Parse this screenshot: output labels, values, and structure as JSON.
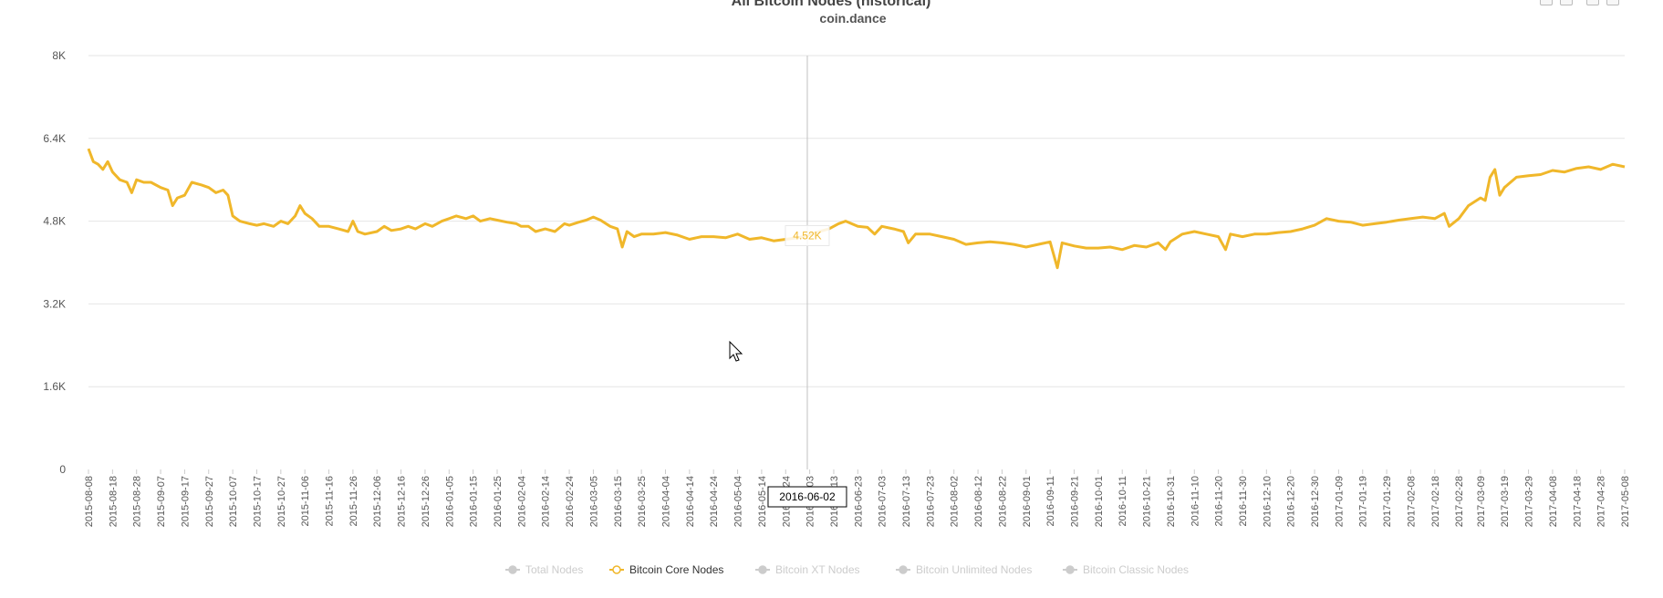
{
  "chart_data": {
    "type": "line",
    "title": "All Bitcoin Nodes (historical)",
    "subtitle": "coin.dance",
    "xlabel": "",
    "ylabel": "",
    "ylim": [
      0,
      8000
    ],
    "y_ticks": [
      "0",
      "1.6K",
      "3.2K",
      "4.8K",
      "6.4K",
      "8K"
    ],
    "grid": true,
    "legend_position": "bottom-center",
    "x_ticks": [
      "2015-08-08",
      "2015-08-18",
      "2015-08-28",
      "2015-09-07",
      "2015-09-17",
      "2015-09-27",
      "2015-10-07",
      "2015-10-17",
      "2015-10-27",
      "2015-11-06",
      "2015-11-16",
      "2015-11-26",
      "2015-12-06",
      "2015-12-16",
      "2015-12-26",
      "2016-01-05",
      "2016-01-15",
      "2016-01-25",
      "2016-02-04",
      "2016-02-14",
      "2016-02-24",
      "2016-03-05",
      "2016-03-15",
      "2016-03-25",
      "2016-04-04",
      "2016-04-14",
      "2016-04-24",
      "2016-05-04",
      "2016-05-14",
      "2016-05-24",
      "2016-06-03",
      "2016-06-13",
      "2016-06-23",
      "2016-07-03",
      "2016-07-13",
      "2016-07-23",
      "2016-08-02",
      "2016-08-12",
      "2016-08-22",
      "2016-09-01",
      "2016-09-11",
      "2016-09-21",
      "2016-10-01",
      "2016-10-11",
      "2016-10-21",
      "2016-10-31",
      "2016-11-10",
      "2016-11-20",
      "2016-11-30",
      "2016-12-10",
      "2016-12-20",
      "2016-12-30",
      "2017-01-09",
      "2017-01-19",
      "2017-01-29",
      "2017-02-08",
      "2017-02-18",
      "2017-02-28",
      "2017-03-09",
      "2017-03-19",
      "2017-03-29",
      "2017-04-08",
      "2017-04-18",
      "2017-04-28",
      "2017-05-08"
    ],
    "series": [
      {
        "name": "Total Nodes",
        "color": "#cccccc",
        "visible": false,
        "values": []
      },
      {
        "name": "Bitcoin Core Nodes",
        "color": "#f0b72a",
        "visible": true,
        "points": [
          [
            "2015-08-08",
            6200
          ],
          [
            "2015-08-10",
            5950
          ],
          [
            "2015-08-12",
            5900
          ],
          [
            "2015-08-14",
            5800
          ],
          [
            "2015-08-16",
            5950
          ],
          [
            "2015-08-18",
            5750
          ],
          [
            "2015-08-21",
            5600
          ],
          [
            "2015-08-24",
            5550
          ],
          [
            "2015-08-26",
            5350
          ],
          [
            "2015-08-28",
            5600
          ],
          [
            "2015-08-31",
            5550
          ],
          [
            "2015-09-03",
            5550
          ],
          [
            "2015-09-07",
            5450
          ],
          [
            "2015-09-10",
            5400
          ],
          [
            "2015-09-12",
            5100
          ],
          [
            "2015-09-14",
            5250
          ],
          [
            "2015-09-17",
            5300
          ],
          [
            "2015-09-20",
            5550
          ],
          [
            "2015-09-24",
            5500
          ],
          [
            "2015-09-27",
            5450
          ],
          [
            "2015-09-30",
            5350
          ],
          [
            "2015-10-03",
            5400
          ],
          [
            "2015-10-05",
            5300
          ],
          [
            "2015-10-07",
            4900
          ],
          [
            "2015-10-10",
            4800
          ],
          [
            "2015-10-14",
            4750
          ],
          [
            "2015-10-17",
            4720
          ],
          [
            "2015-10-20",
            4750
          ],
          [
            "2015-10-24",
            4700
          ],
          [
            "2015-10-27",
            4800
          ],
          [
            "2015-10-30",
            4750
          ],
          [
            "2015-11-02",
            4900
          ],
          [
            "2015-11-04",
            5100
          ],
          [
            "2015-11-06",
            4950
          ],
          [
            "2015-11-09",
            4850
          ],
          [
            "2015-11-12",
            4700
          ],
          [
            "2015-11-16",
            4700
          ],
          [
            "2015-11-20",
            4650
          ],
          [
            "2015-11-24",
            4600
          ],
          [
            "2015-11-26",
            4800
          ],
          [
            "2015-11-28",
            4600
          ],
          [
            "2015-12-01",
            4550
          ],
          [
            "2015-12-06",
            4600
          ],
          [
            "2015-12-09",
            4700
          ],
          [
            "2015-12-12",
            4620
          ],
          [
            "2015-12-16",
            4650
          ],
          [
            "2015-12-19",
            4700
          ],
          [
            "2015-12-22",
            4650
          ],
          [
            "2015-12-26",
            4750
          ],
          [
            "2015-12-29",
            4700
          ],
          [
            "2016-01-02",
            4800
          ],
          [
            "2016-01-05",
            4850
          ],
          [
            "2016-01-08",
            4900
          ],
          [
            "2016-01-12",
            4850
          ],
          [
            "2016-01-15",
            4900
          ],
          [
            "2016-01-18",
            4800
          ],
          [
            "2016-01-22",
            4850
          ],
          [
            "2016-01-25",
            4820
          ],
          [
            "2016-01-29",
            4780
          ],
          [
            "2016-02-02",
            4750
          ],
          [
            "2016-02-04",
            4700
          ],
          [
            "2016-02-07",
            4700
          ],
          [
            "2016-02-10",
            4600
          ],
          [
            "2016-02-14",
            4650
          ],
          [
            "2016-02-18",
            4600
          ],
          [
            "2016-02-22",
            4750
          ],
          [
            "2016-02-24",
            4720
          ],
          [
            "2016-02-28",
            4780
          ],
          [
            "2016-03-02",
            4820
          ],
          [
            "2016-03-05",
            4880
          ],
          [
            "2016-03-08",
            4820
          ],
          [
            "2016-03-12",
            4700
          ],
          [
            "2016-03-15",
            4650
          ],
          [
            "2016-03-17",
            4300
          ],
          [
            "2016-03-19",
            4600
          ],
          [
            "2016-03-22",
            4500
          ],
          [
            "2016-03-25",
            4550
          ],
          [
            "2016-03-30",
            4550
          ],
          [
            "2016-04-04",
            4580
          ],
          [
            "2016-04-09",
            4530
          ],
          [
            "2016-04-14",
            4450
          ],
          [
            "2016-04-19",
            4500
          ],
          [
            "2016-04-24",
            4500
          ],
          [
            "2016-04-29",
            4480
          ],
          [
            "2016-05-04",
            4550
          ],
          [
            "2016-05-09",
            4450
          ],
          [
            "2016-05-14",
            4480
          ],
          [
            "2016-05-19",
            4420
          ],
          [
            "2016-05-24",
            4450
          ],
          [
            "2016-05-29",
            4480
          ],
          [
            "2016-06-02",
            4520
          ],
          [
            "2016-06-07",
            4600
          ],
          [
            "2016-06-11",
            4650
          ],
          [
            "2016-06-15",
            4750
          ],
          [
            "2016-06-18",
            4800
          ],
          [
            "2016-06-23",
            4700
          ],
          [
            "2016-06-27",
            4680
          ],
          [
            "2016-06-30",
            4550
          ],
          [
            "2016-07-03",
            4700
          ],
          [
            "2016-07-08",
            4650
          ],
          [
            "2016-07-12",
            4600
          ],
          [
            "2016-07-14",
            4380
          ],
          [
            "2016-07-17",
            4550
          ],
          [
            "2016-07-23",
            4550
          ],
          [
            "2016-07-28",
            4500
          ],
          [
            "2016-08-02",
            4450
          ],
          [
            "2016-08-07",
            4350
          ],
          [
            "2016-08-12",
            4380
          ],
          [
            "2016-08-17",
            4400
          ],
          [
            "2016-08-22",
            4380
          ],
          [
            "2016-08-27",
            4350
          ],
          [
            "2016-09-01",
            4300
          ],
          [
            "2016-09-06",
            4350
          ],
          [
            "2016-09-11",
            4400
          ],
          [
            "2016-09-14",
            3900
          ],
          [
            "2016-09-16",
            4380
          ],
          [
            "2016-09-21",
            4320
          ],
          [
            "2016-09-26",
            4280
          ],
          [
            "2016-10-01",
            4280
          ],
          [
            "2016-10-06",
            4300
          ],
          [
            "2016-10-11",
            4250
          ],
          [
            "2016-10-16",
            4330
          ],
          [
            "2016-10-21",
            4300
          ],
          [
            "2016-10-26",
            4380
          ],
          [
            "2016-10-29",
            4250
          ],
          [
            "2016-10-31",
            4400
          ],
          [
            "2016-11-05",
            4550
          ],
          [
            "2016-11-10",
            4600
          ],
          [
            "2016-11-15",
            4550
          ],
          [
            "2016-11-20",
            4500
          ],
          [
            "2016-11-23",
            4250
          ],
          [
            "2016-11-25",
            4550
          ],
          [
            "2016-11-30",
            4500
          ],
          [
            "2016-12-05",
            4550
          ],
          [
            "2016-12-10",
            4550
          ],
          [
            "2016-12-15",
            4580
          ],
          [
            "2016-12-20",
            4600
          ],
          [
            "2016-12-25",
            4650
          ],
          [
            "2016-12-30",
            4720
          ],
          [
            "2017-01-04",
            4850
          ],
          [
            "2017-01-09",
            4800
          ],
          [
            "2017-01-14",
            4780
          ],
          [
            "2017-01-19",
            4720
          ],
          [
            "2017-01-24",
            4750
          ],
          [
            "2017-01-29",
            4780
          ],
          [
            "2017-02-03",
            4820
          ],
          [
            "2017-02-08",
            4850
          ],
          [
            "2017-02-13",
            4880
          ],
          [
            "2017-02-18",
            4850
          ],
          [
            "2017-02-22",
            4950
          ],
          [
            "2017-02-24",
            4700
          ],
          [
            "2017-02-28",
            4850
          ],
          [
            "2017-03-04",
            5100
          ],
          [
            "2017-03-09",
            5250
          ],
          [
            "2017-03-11",
            5200
          ],
          [
            "2017-03-13",
            5650
          ],
          [
            "2017-03-15",
            5800
          ],
          [
            "2017-03-17",
            5300
          ],
          [
            "2017-03-19",
            5450
          ],
          [
            "2017-03-24",
            5650
          ],
          [
            "2017-03-29",
            5680
          ],
          [
            "2017-04-03",
            5700
          ],
          [
            "2017-04-08",
            5780
          ],
          [
            "2017-04-13",
            5750
          ],
          [
            "2017-04-18",
            5820
          ],
          [
            "2017-04-23",
            5850
          ],
          [
            "2017-04-28",
            5800
          ],
          [
            "2017-05-03",
            5900
          ],
          [
            "2017-05-08",
            5850
          ]
        ]
      },
      {
        "name": "Bitcoin XT Nodes",
        "color": "#cccccc",
        "visible": false,
        "values": []
      },
      {
        "name": "Bitcoin Unlimited Nodes",
        "color": "#cccccc",
        "visible": false,
        "values": []
      },
      {
        "name": "Bitcoin Classic Nodes",
        "color": "#cccccc",
        "visible": false,
        "values": []
      }
    ],
    "tooltip": {
      "date": "2016-06-02",
      "value_label": "4.52K",
      "value": 4520
    }
  }
}
